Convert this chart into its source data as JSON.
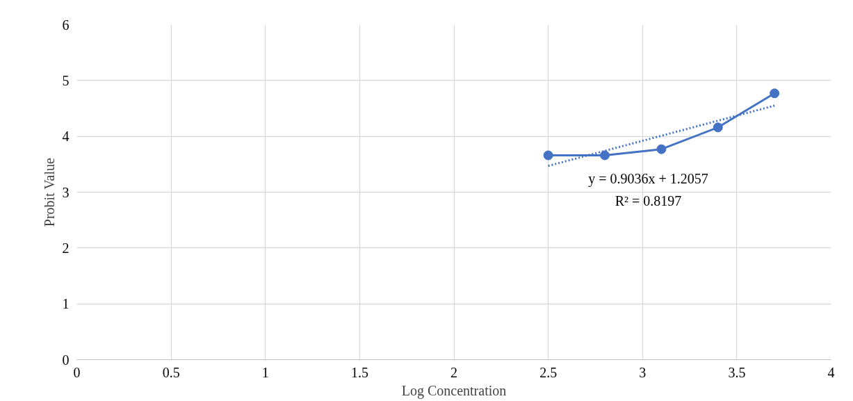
{
  "chart_data": {
    "type": "line",
    "xlabel": "Log Concentration",
    "ylabel": "Probit Value",
    "xlim": [
      0,
      4
    ],
    "xticks": [
      0,
      0.5,
      1,
      1.5,
      2,
      2.5,
      3,
      3.5,
      4
    ],
    "ylim": [
      0,
      6
    ],
    "yticks": [
      0,
      1,
      2,
      3,
      4,
      5,
      6
    ],
    "grid": true,
    "series": [
      {
        "marker": "circle",
        "line_style": "solid",
        "color": "#4472c4",
        "x": [
          2.5,
          2.8,
          3.1,
          3.4,
          3.7
        ],
        "values": [
          3.66,
          3.66,
          3.77,
          4.16,
          4.77
        ]
      },
      {
        "marker": "none",
        "line_style": "dotted",
        "color": "#4472c4",
        "x": [
          2.5,
          3.7
        ],
        "values": [
          3.47,
          4.55
        ]
      }
    ],
    "annotations": [
      "y = 0.9036x + 1.2057",
      "R² = 0.8197"
    ]
  }
}
